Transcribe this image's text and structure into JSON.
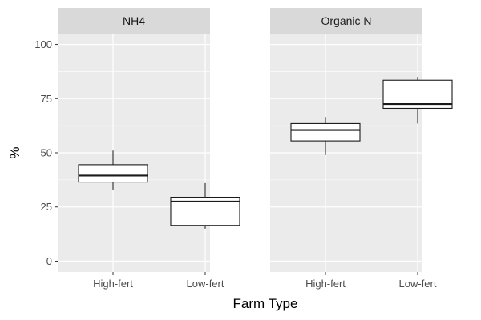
{
  "chart_data": {
    "type": "boxplot",
    "xlabel": "Farm Type",
    "ylabel": "%",
    "ylim": [
      -5,
      105
    ],
    "yticks": [
      0,
      25,
      50,
      75,
      100
    ],
    "categories": [
      "High-fert",
      "Low-fert"
    ],
    "grid": true,
    "panels": [
      {
        "strip": "NH4",
        "boxes": [
          {
            "category": "High-fert",
            "min": 33,
            "q1": 36.5,
            "median": 39.5,
            "q3": 44.5,
            "max": 51
          },
          {
            "category": "Low-fert",
            "min": 15,
            "q1": 16.5,
            "median": 27.5,
            "q3": 29.5,
            "max": 36
          }
        ]
      },
      {
        "strip": "Organic N",
        "boxes": [
          {
            "category": "High-fert",
            "min": 49,
            "q1": 55.5,
            "median": 60.5,
            "q3": 63.5,
            "max": 66.5
          },
          {
            "category": "Low-fert",
            "min": 63.5,
            "q1": 70.5,
            "median": 72.5,
            "q3": 83.5,
            "max": 85
          }
        ]
      }
    ]
  },
  "colors": {
    "panel_bg": "#ebebeb",
    "strip_bg": "#d9d9d9",
    "grid": "#ffffff",
    "box_fill": "#ffffff",
    "box_line": "#1a1a1a"
  }
}
